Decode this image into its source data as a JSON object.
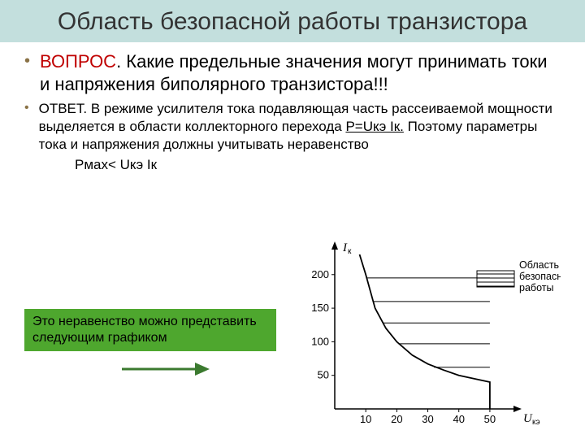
{
  "title": "Область безопасной работы транзистора",
  "question": {
    "label": "ВОПРОС",
    "text": ". Какие предельные значения могут принимать токи и напряжения биполярного транзистора!!!"
  },
  "answer": {
    "label": "ОТВЕТ.",
    "part1": " В режиме усилителя тока подавляющая часть рассеиваемой мощности выделяется в области коллекторного перехода ",
    "eq": "Р=Uкэ Iк.",
    "part2": " Поэтому параметры тока и напряжения должны учитывать неравенство"
  },
  "inequality": "Рмах< Uкэ Iк",
  "greenbox": "Это неравенство можно представить следующим графиком",
  "chart": {
    "type": "line",
    "y_axis_label": "Iк",
    "x_axis_label": "Uкэ",
    "legend_label": "Область безопасной работы",
    "x_ticks": [
      10,
      20,
      30,
      40,
      50
    ],
    "y_ticks": [
      50,
      100,
      150,
      200
    ],
    "xlim": [
      0,
      55
    ],
    "ylim": [
      0,
      230
    ],
    "curve_points": [
      [
        8,
        230
      ],
      [
        10,
        200
      ],
      [
        13,
        150
      ],
      [
        16.5,
        120
      ],
      [
        20,
        100
      ],
      [
        25,
        80
      ],
      [
        30,
        67
      ],
      [
        35,
        58
      ],
      [
        40,
        50
      ],
      [
        45,
        45
      ],
      [
        50,
        40
      ],
      [
        50,
        0
      ]
    ],
    "hatching_lines": [
      [
        50,
        20,
        50,
        20
      ],
      [
        32,
        62,
        50,
        62
      ],
      [
        20.5,
        97,
        50,
        97
      ],
      [
        15.5,
        128,
        50,
        128
      ],
      [
        12.5,
        160,
        50,
        160
      ],
      [
        10.2,
        195,
        50,
        195
      ]
    ],
    "hatching_box_legend": true,
    "stroke_color": "#000000",
    "bg_color": "#ffffff",
    "tick_fontsize": 13,
    "label_fontsize": 15
  },
  "colors": {
    "title_bg": "#c3dfdd",
    "bullet": "#8a7246",
    "question": "#c00000",
    "greenbox_bg": "#4ea72e",
    "arrow": "#3b7a2f"
  }
}
